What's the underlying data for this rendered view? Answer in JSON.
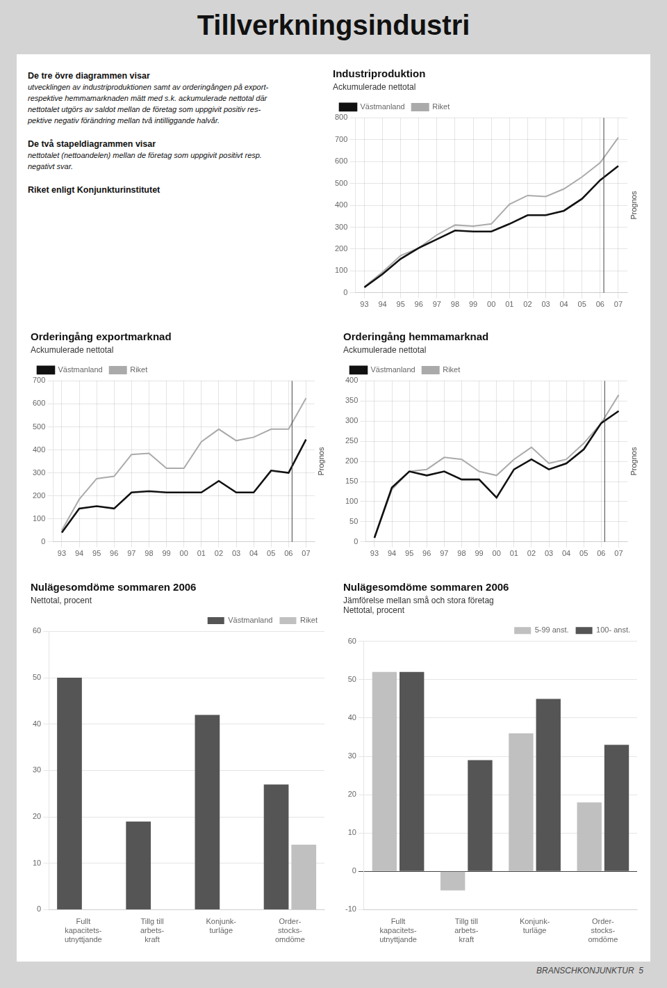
{
  "title": "Tillverkningsindustri",
  "annotations": [
    {
      "title": "De tre övre diagrammen visar",
      "text": "utvecklingen av industriproduktionen samt av orderingången på export-\nrespektive hemmamarknaden mätt med s.k. ackumulerade nettotal där\nnettotalet utgörs av saldot mellan de företag som uppgivit positiv res-\npektive negativ förändring mellan två intilliggande halvår."
    },
    {
      "title": "De två stapeldiagrammen visar",
      "text": "nettotalet (nettoandelen) mellan de företag som uppgivit positivt resp.\nnegativt svar."
    },
    {
      "title": "Riket enligt Konjunkturinstitutet"
    },
    {
      "text": "BRANSCHKONJUNKTUR  5"
    }
  ],
  "chart_data": [
    {
      "type": "line",
      "title": "Industriproduktion",
      "subtitle": "Ackumulerade nettotal",
      "categories": [
        "93",
        "94",
        "95",
        "96",
        "97",
        "98",
        "99",
        "00",
        "01",
        "02",
        "03",
        "04",
        "05",
        "06",
        "07"
      ],
      "series": [
        {
          "name": "Västmanland",
          "color": "#111111",
          "values": [
            25,
            85,
            155,
            205,
            245,
            285,
            280,
            280,
            315,
            355,
            355,
            375,
            430,
            515,
            580
          ]
        },
        {
          "name": "Riket",
          "color": "#aaaaaa",
          "values": [
            28,
            95,
            170,
            205,
            265,
            310,
            305,
            315,
            405,
            445,
            440,
            475,
            530,
            595,
            710
          ]
        }
      ],
      "ylim": [
        0,
        800
      ],
      "yticks": [
        0,
        100,
        200,
        300,
        400,
        500,
        600,
        700,
        800
      ],
      "grid": true,
      "legend": "upper left",
      "annotations": [
        {
          "text": "Prognos",
          "x": 13.2
        }
      ]
    },
    {
      "type": "line",
      "title": "Orderingång exportmarknad",
      "subtitle": "Ackumulerade nettotal",
      "categories": [
        "93",
        "94",
        "95",
        "96",
        "97",
        "98",
        "99",
        "00",
        "01",
        "02",
        "03",
        "04",
        "05",
        "06",
        "07"
      ],
      "series": [
        {
          "name": "Västmanland",
          "color": "#111111",
          "values": [
            40,
            145,
            155,
            145,
            215,
            220,
            215,
            215,
            215,
            265,
            215,
            215,
            310,
            300,
            445
          ]
        },
        {
          "name": "Riket",
          "color": "#aaaaaa",
          "values": [
            50,
            185,
            275,
            285,
            380,
            385,
            320,
            320,
            435,
            490,
            440,
            455,
            490,
            490,
            625
          ]
        }
      ],
      "ylim": [
        0,
        700
      ],
      "yticks": [
        0,
        100,
        200,
        300,
        400,
        500,
        600,
        700
      ],
      "grid": true,
      "legend": "upper left",
      "annotations": [
        {
          "text": "Prognos",
          "x": 13.2
        }
      ]
    },
    {
      "type": "line",
      "title": "Orderingång hemmamarknad",
      "subtitle": "Ackumulerade nettotal",
      "categories": [
        "93",
        "94",
        "95",
        "96",
        "97",
        "98",
        "99",
        "00",
        "01",
        "02",
        "03",
        "04",
        "05",
        "06",
        "07"
      ],
      "series": [
        {
          "name": "Västmanland",
          "color": "#111111",
          "values": [
            10,
            135,
            175,
            165,
            175,
            155,
            155,
            110,
            180,
            205,
            180,
            195,
            230,
            295,
            325
          ]
        },
        {
          "name": "Riket",
          "color": "#aaaaaa",
          "values": [
            10,
            130,
            175,
            180,
            210,
            205,
            175,
            165,
            205,
            235,
            195,
            205,
            245,
            295,
            365
          ]
        }
      ],
      "ylim": [
        0,
        400
      ],
      "yticks": [
        0,
        50,
        100,
        150,
        200,
        250,
        300,
        350,
        400
      ],
      "grid": true,
      "legend": "upper left",
      "annotations": [
        {
          "text": "Prognos",
          "x": 13.2
        }
      ]
    },
    {
      "type": "bar",
      "title": "Nulägesomdöme sommaren 2006",
      "subtitle": "Nettotal, procent",
      "categories": [
        "Fullt\nkapacitets-\nutnyttjande",
        "Tillg till\narbets-\nkraft",
        "Konjunk-\nturläge",
        "Order-\nstocks-\nomdöme"
      ],
      "series": [
        {
          "name": "Västmanland",
          "color": "#555555",
          "values": [
            50,
            19,
            42,
            27
          ]
        },
        {
          "name": "Riket",
          "color": "#c0c0c0",
          "values": [
            0,
            0,
            0,
            14
          ]
        }
      ],
      "ylim": [
        0,
        60
      ],
      "yticks": [
        0,
        10,
        20,
        30,
        40,
        50,
        60
      ],
      "grid": "y",
      "legend": "upper right"
    },
    {
      "type": "bar",
      "title": "Nulägesomdöme sommaren 2006",
      "subtitle": [
        "Jämförelse mellan små och stora företag",
        "Nettotal, procent"
      ],
      "categories": [
        "Fullt\nkapacitets-\nutnyttjande",
        "Tillg till\narbets-\nkraft",
        "Konjunk-\nturläge",
        "Order-\nstocks-\nomdöme"
      ],
      "series": [
        {
          "name": "5-99 anst.",
          "color": "#c0c0c0",
          "values": [
            52,
            -5,
            36,
            18
          ]
        },
        {
          "name": "100- anst.",
          "color": "#555555",
          "values": [
            52,
            29,
            45,
            33
          ]
        }
      ],
      "ylim": [
        -10,
        60
      ],
      "yticks": [
        -10,
        0,
        10,
        20,
        30,
        40,
        50,
        60
      ],
      "grid": "y",
      "legend": "upper right"
    }
  ]
}
